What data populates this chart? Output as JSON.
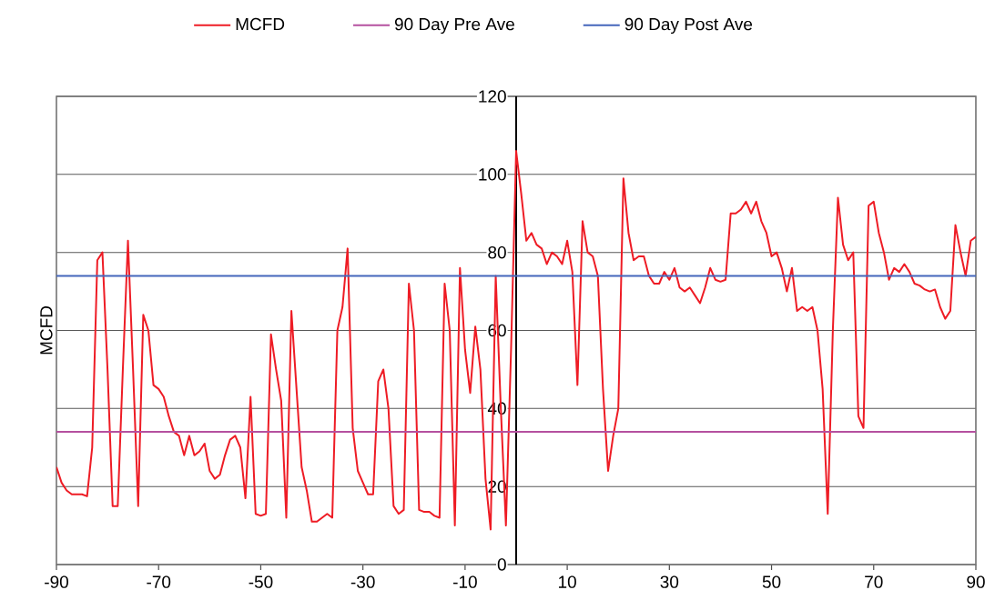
{
  "chart_data": {
    "type": "line",
    "ylabel": "MCFD",
    "xlim": [
      -90,
      90
    ],
    "xticks": [
      -90,
      -70,
      -50,
      -30,
      -10,
      10,
      30,
      50,
      70,
      90
    ],
    "ylim": [
      0,
      120
    ],
    "yticks": [
      0,
      20,
      40,
      60,
      80,
      100,
      120
    ],
    "grid": "y",
    "legend": "top",
    "marker": "none",
    "line_style": "solid",
    "series": [
      {
        "name": "MCFD",
        "color": "#ee1c25",
        "x": [
          -90,
          -89,
          -88,
          -87,
          -86,
          -85,
          -84,
          -83,
          -82,
          -81,
          -80,
          -79,
          -78,
          -77,
          -76,
          -75,
          -74,
          -73,
          -72,
          -71,
          -70,
          -69,
          -68,
          -67,
          -66,
          -65,
          -64,
          -63,
          -62,
          -61,
          -60,
          -59,
          -58,
          -57,
          -56,
          -55,
          -54,
          -53,
          -52,
          -51,
          -50,
          -49,
          -48,
          -47,
          -46,
          -45,
          -44,
          -43,
          -42,
          -41,
          -40,
          -39,
          -38,
          -37,
          -36,
          -35,
          -34,
          -33,
          -32,
          -31,
          -30,
          -29,
          -28,
          -27,
          -26,
          -25,
          -24,
          -23,
          -22,
          -21,
          -20,
          -19,
          -18,
          -17,
          -16,
          -15,
          -14,
          -13,
          -12,
          -11,
          -10,
          -9,
          -8,
          -7,
          -6,
          -5,
          -4,
          -3,
          -2,
          -1,
          0,
          1,
          2,
          3,
          4,
          5,
          6,
          7,
          8,
          9,
          10,
          11,
          12,
          13,
          14,
          15,
          16,
          17,
          18,
          19,
          20,
          21,
          22,
          23,
          24,
          25,
          26,
          27,
          28,
          29,
          30,
          31,
          32,
          33,
          34,
          35,
          36,
          37,
          38,
          39,
          40,
          41,
          42,
          43,
          44,
          45,
          46,
          47,
          48,
          49,
          50,
          51,
          52,
          53,
          54,
          55,
          56,
          57,
          58,
          59,
          60,
          61,
          62,
          63,
          64,
          65,
          66,
          67,
          68,
          69,
          70,
          71,
          72,
          73,
          74,
          75,
          76,
          77,
          78,
          79,
          80,
          81,
          82,
          83,
          84,
          85,
          86,
          87,
          88,
          89,
          90
        ],
        "values": [
          25,
          21,
          19,
          18,
          18,
          18,
          17.5,
          30,
          78,
          80,
          50,
          15,
          15,
          50,
          83,
          50,
          15,
          64,
          60,
          46,
          45,
          43,
          38,
          34,
          33,
          28,
          33,
          28,
          29,
          31,
          24,
          22,
          23,
          28,
          32,
          33,
          30,
          17,
          43,
          13,
          12.5,
          13,
          59,
          50,
          42,
          12,
          65,
          45,
          25,
          19,
          11,
          11,
          12,
          13,
          12,
          60,
          66,
          81,
          35,
          24,
          21,
          18,
          18,
          47,
          50,
          40,
          15,
          13,
          14,
          72,
          60,
          14,
          13.5,
          13.5,
          12.5,
          12,
          72,
          60,
          10,
          76,
          55,
          44,
          61,
          50,
          22,
          9,
          74,
          40,
          10,
          55,
          106,
          95,
          83,
          85,
          82,
          81,
          77,
          80,
          79,
          77,
          83,
          75,
          46,
          88,
          80,
          79,
          74,
          45,
          24,
          33,
          40,
          99,
          85,
          78,
          79,
          79,
          74,
          72,
          72,
          75,
          73,
          76,
          71,
          70,
          71,
          69,
          67,
          71,
          76,
          73,
          72.5,
          73,
          90,
          90,
          91,
          93,
          90,
          93,
          88,
          85,
          79,
          80,
          76,
          70,
          76,
          65,
          66,
          65,
          66,
          60,
          45,
          13,
          60,
          94,
          82,
          78,
          80,
          38,
          35,
          92,
          93,
          85,
          80,
          73,
          76,
          75,
          77,
          75,
          72,
          71.5,
          70.5,
          70,
          70.5,
          66,
          63,
          65,
          87,
          80,
          74,
          83,
          84
        ]
      },
      {
        "name": "90 Day  Pre Ave",
        "color": "#b5509f",
        "x": [
          -90,
          90
        ],
        "values": [
          34,
          34
        ]
      },
      {
        "name": "90 Day Post Ave",
        "color": "#4466bb",
        "x": [
          -90,
          90
        ],
        "values": [
          74,
          74
        ]
      }
    ]
  }
}
